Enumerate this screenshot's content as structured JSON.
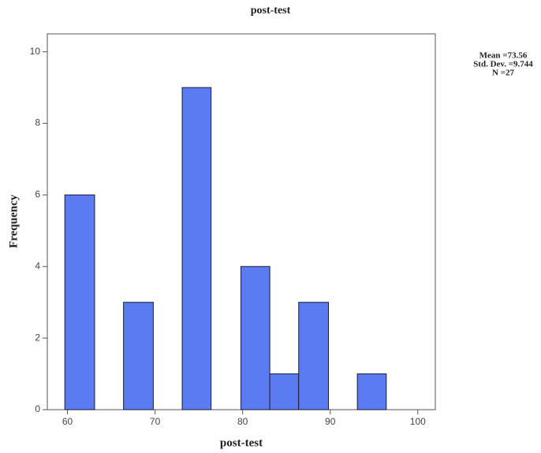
{
  "chart_data": {
    "type": "histogram",
    "title": "post-test",
    "x_label": "post-test",
    "y_label": "Frequency",
    "bins": [
      59.7,
      63.1,
      66.4,
      69.8,
      73.1,
      76.4,
      79.8,
      83.1,
      86.4,
      89.8,
      93.1,
      96.4
    ],
    "values": [
      6,
      0,
      3,
      0,
      9,
      0,
      4,
      1,
      3,
      0,
      1
    ],
    "color": "#5b7cf0",
    "xlim": [
      57.7,
      102
    ],
    "xticks": [
      60,
      70,
      80,
      90,
      100
    ],
    "ylim": [
      0,
      10.5
    ],
    "yticks": [
      0,
      2,
      4,
      6,
      8,
      10
    ],
    "stats": [
      "Mean =73.56",
      "Std. Dev. =9.744",
      "N =27"
    ]
  }
}
